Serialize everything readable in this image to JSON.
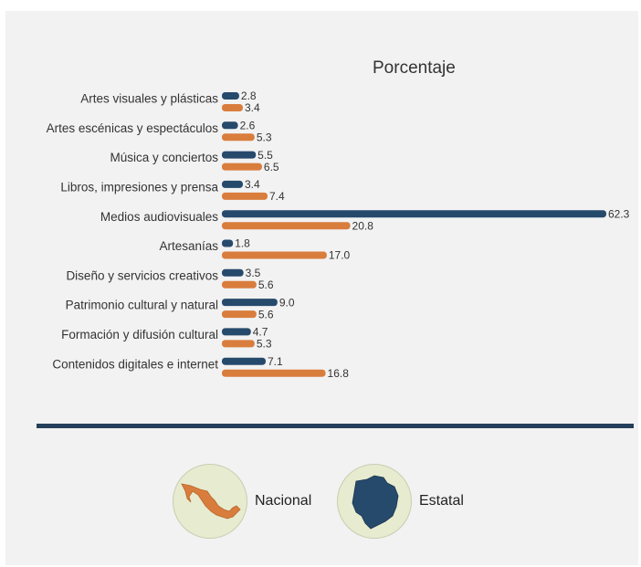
{
  "chart_data": {
    "type": "bar",
    "orientation": "horizontal",
    "title": "Porcentaje",
    "categories": [
      "Artes visuales y plásticas",
      "Artes escénicas y espectáculos",
      "Música y conciertos",
      "Libros, impresiones y prensa",
      "Medios audiovisuales",
      "Artesanías",
      "Diseño y servicios creativos",
      "Patrimonio cultural y natural",
      "Formación y difusión cultural",
      "Contenidos digitales e internet"
    ],
    "series": [
      {
        "name": "Estatal",
        "color": "#264a6c",
        "values": [
          2.8,
          2.6,
          5.5,
          3.4,
          62.3,
          1.8,
          3.5,
          9.0,
          4.7,
          7.1
        ],
        "labels": [
          "2.8",
          "2.6",
          "5.5",
          "3.4",
          "62.3",
          "1.8",
          "3.5",
          "9.0",
          "4.7",
          "7.1"
        ]
      },
      {
        "name": "Nacional",
        "color": "#d97d3d",
        "values": [
          3.4,
          5.3,
          6.5,
          7.4,
          20.8,
          17.0,
          5.6,
          5.6,
          5.3,
          16.8
        ],
        "labels": [
          "3.4",
          "5.3",
          "6.5",
          "7.4",
          "20.8",
          "17.0",
          "5.6",
          "5.6",
          "5.3",
          "16.8"
        ]
      }
    ],
    "xlim": [
      0,
      62.3
    ],
    "grid": false,
    "legend": {
      "position": "bottom",
      "items": [
        {
          "label": "Nacional",
          "color": "#d97d3d",
          "icon": "mexico-map-icon"
        },
        {
          "label": "Estatal",
          "color": "#264a6c",
          "icon": "chihuahua-state-map-icon"
        }
      ]
    },
    "colors": {
      "panel_background": "#f2f2f2",
      "divider": "#243f5b",
      "legend_circle": "#e7ebcf"
    }
  }
}
